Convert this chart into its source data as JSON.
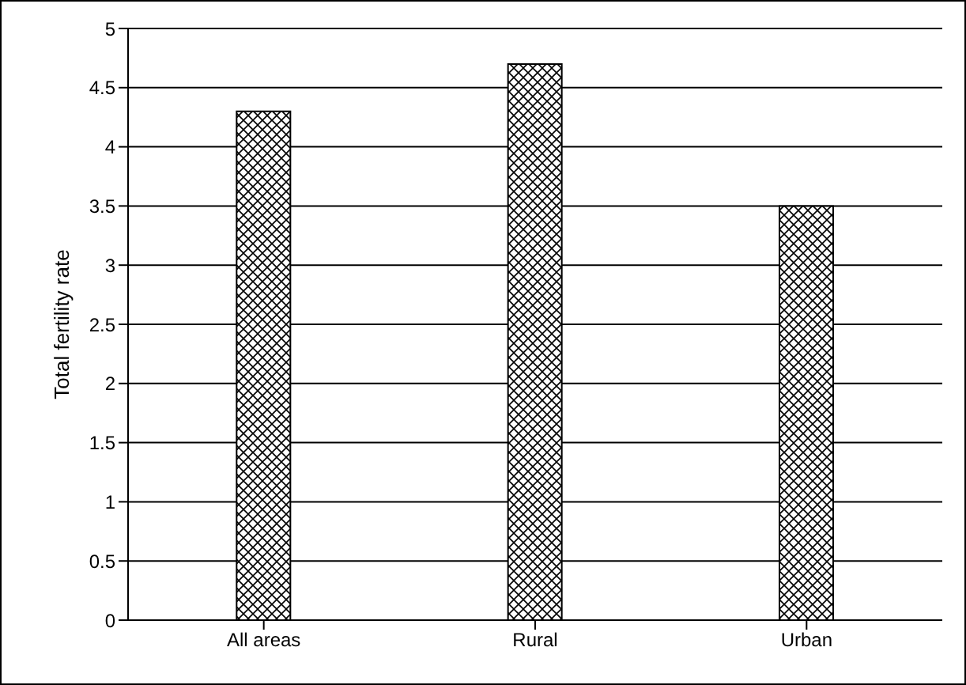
{
  "chart_data": {
    "type": "bar",
    "ylabel": "Total fertility rate",
    "categories": [
      "All areas",
      "Rural",
      "Urban"
    ],
    "values": [
      4.3,
      4.7,
      3.5
    ],
    "color": "#000000",
    "ylim": [
      0,
      5
    ],
    "yticks": [
      0,
      0.5,
      1,
      1.5,
      2,
      2.5,
      3,
      3.5,
      4,
      4.5,
      5
    ],
    "grid": "y"
  }
}
